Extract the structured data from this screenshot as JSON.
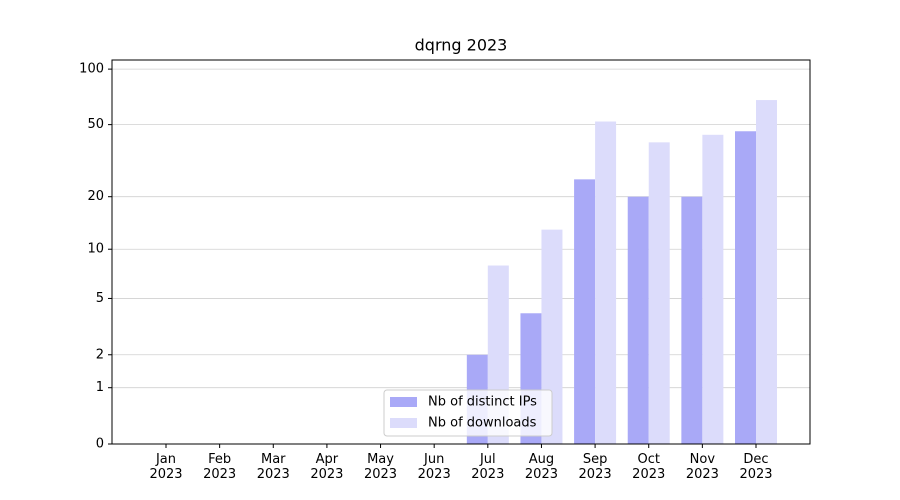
{
  "chart_data": {
    "type": "bar",
    "title": "dqrng 2023",
    "categories": [
      "Jan 2023",
      "Feb 2023",
      "Mar 2023",
      "Apr 2023",
      "May 2023",
      "Jun 2023",
      "Jul 2023",
      "Aug 2023",
      "Sep 2023",
      "Oct 2023",
      "Nov 2023",
      "Dec 2023"
    ],
    "series": [
      {
        "name": "Nb of distinct IPs",
        "color": "#a9a9f7",
        "values": [
          0,
          0,
          0,
          0,
          0,
          0,
          2,
          4,
          25,
          20,
          20,
          46
        ]
      },
      {
        "name": "Nb of downloads",
        "color": "#dcdcfb",
        "values": [
          0,
          0,
          0,
          0,
          0,
          0,
          8,
          13,
          52,
          40,
          44,
          68
        ]
      }
    ],
    "yscale": "log1p",
    "ylim": [
      0,
      112
    ],
    "yticks": [
      0,
      1,
      2,
      5,
      10,
      20,
      50,
      100
    ],
    "grid": true,
    "legend": "lower center"
  }
}
